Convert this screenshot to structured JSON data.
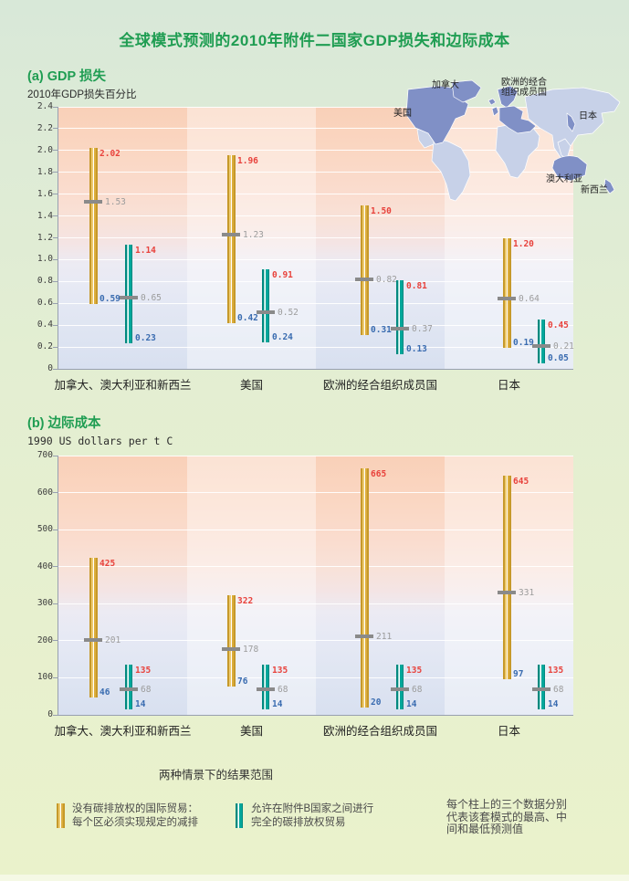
{
  "title": "全球模式预测的2010年附件二国家GDP损失和边际成本",
  "panel_a": {
    "label": "(a) GDP 损失",
    "axis_title": "2010年GDP损失百分比"
  },
  "panel_b": {
    "label": "(b) 边际成本",
    "axis_title": "1990 US dollars per t C"
  },
  "map": {
    "labels": {
      "canada": "加拿大",
      "europe": "欧洲的经合\n组织成员国",
      "usa": "美国",
      "japan": "日本",
      "australia": "澳大利亚",
      "new_zealand": "新西兰"
    }
  },
  "chart_data": [
    {
      "type": "range-bar",
      "title": "(a) GDP 损失",
      "ylabel": "2010年GDP损失百分比",
      "ylim": [
        0,
        2.4
      ],
      "ytick_step": 0.2,
      "tick_decimals": 1,
      "value_decimals": 2,
      "grid": true,
      "categories": [
        "加拿大、澳大利亚和新西兰",
        "美国",
        "欧洲的经合组织成员国",
        "日本"
      ],
      "series": [
        {
          "name": "没有碳排放权的国际贸易：每个区必须实现规定的减排",
          "color_key": "yellow",
          "high": [
            2.02,
            1.96,
            1.5,
            1.2
          ],
          "mid": [
            1.53,
            1.23,
            0.82,
            0.64
          ],
          "low": [
            0.59,
            0.42,
            0.31,
            0.19
          ]
        },
        {
          "name": "允许在附件B国家之间进行完全的碳排放权贸易",
          "color_key": "teal",
          "high": [
            1.14,
            0.91,
            0.81,
            0.45
          ],
          "mid": [
            0.65,
            0.52,
            0.37,
            0.21
          ],
          "low": [
            0.23,
            0.24,
            0.13,
            0.05
          ]
        }
      ]
    },
    {
      "type": "range-bar",
      "title": "(b) 边际成本",
      "ylabel": "1990 US dollars per t C",
      "ylim": [
        0,
        700
      ],
      "ytick_step": 100,
      "tick_decimals": 0,
      "value_decimals": 0,
      "grid": true,
      "categories": [
        "加拿大、澳大利亚和新西兰",
        "美国",
        "欧洲的经合组织成员国",
        "日本"
      ],
      "series": [
        {
          "name": "没有碳排放权的国际贸易：每个区必须实现规定的减排",
          "color_key": "yellow",
          "high": [
            425,
            322,
            665,
            645
          ],
          "mid": [
            201,
            178,
            211,
            331
          ],
          "low": [
            46,
            76,
            20,
            97
          ]
        },
        {
          "name": "允许在附件B国家之间进行完全的碳排放权贸易",
          "color_key": "teal",
          "high": [
            135,
            135,
            135,
            135
          ],
          "mid": [
            68,
            68,
            68,
            68
          ],
          "low": [
            14,
            14,
            14,
            14
          ]
        }
      ]
    }
  ],
  "legend": {
    "caption": "两种情景下的结果范围",
    "items": [
      {
        "key": "no-trading",
        "line1": "没有碳排放权的国际贸易：",
        "line2": "每个区必须实现规定的减排"
      },
      {
        "key": "full-trading",
        "line1": "允许在附件B国家之间进行",
        "line2": "完全的碳排放权贸易"
      }
    ],
    "note_line1": "每个柱上的三个数据分别",
    "note_line2": "代表该套模式的最高、中",
    "note_line3": "间和最低预测值"
  },
  "colors": {
    "title_green": "#1f9d52",
    "bar_yellow": "#d9a93a",
    "bar_teal": "#00a79b",
    "label_max_red": "#e8423c",
    "label_mid_gray": "#9c9c9c",
    "label_min_blue": "#3a6cb0",
    "map_highlight": "#8090c6",
    "map_land": "#c7d1e8"
  }
}
